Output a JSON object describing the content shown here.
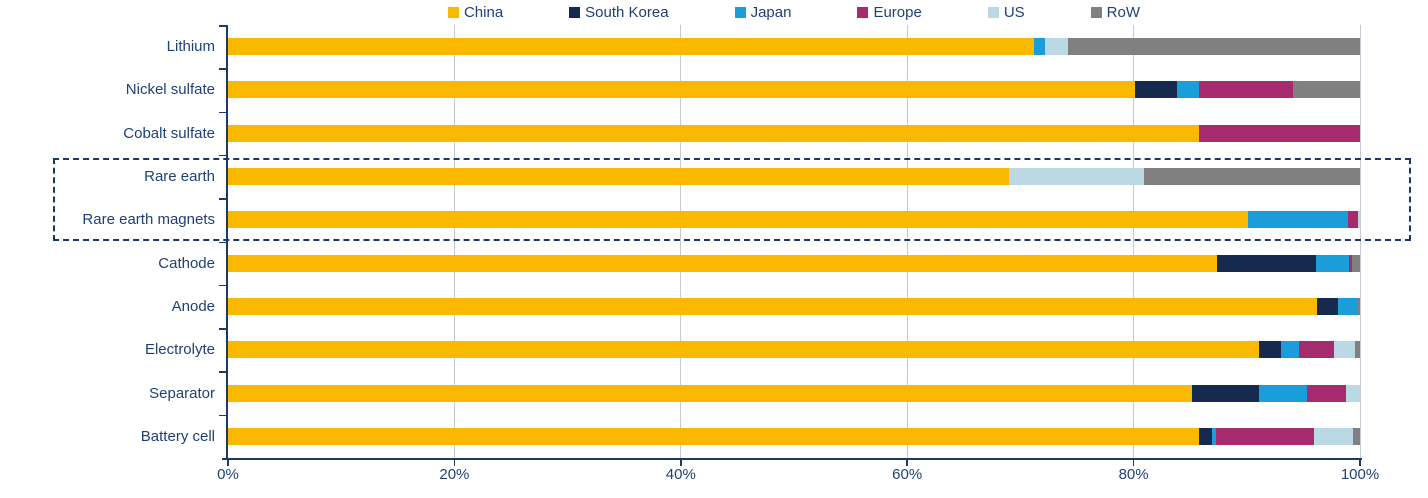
{
  "chart_data": {
    "type": "bar",
    "orientation": "horizontal",
    "stacked": true,
    "unit": "percent",
    "title": "",
    "categories": [
      "Lithium",
      "Nickel sulfate",
      "Cobalt sulfate",
      "Rare earth",
      "Rare earth magnets",
      "Cathode",
      "Anode",
      "Electrolyte",
      "Separator",
      "Battery cell"
    ],
    "series": [
      {
        "name": "China",
        "color": "#FBB800",
        "values": [
          71.2,
          80.1,
          85.8,
          69.0,
          90.1,
          87.4,
          96.2,
          91.1,
          85.2,
          85.8
        ]
      },
      {
        "name": "South Korea",
        "color": "#16294F",
        "values": [
          0,
          3.7,
          0,
          0,
          0,
          8.7,
          1.9,
          1.9,
          5.9,
          1.1
        ]
      },
      {
        "name": "Japan",
        "color": "#1A9DD9",
        "values": [
          1.0,
          2.0,
          0,
          0,
          8.8,
          2.9,
          1.6,
          1.6,
          4.2,
          0.4
        ]
      },
      {
        "name": "Europe",
        "color": "#A62A6E",
        "values": [
          0,
          8.3,
          14.2,
          0,
          0.9,
          0.3,
          0,
          3.1,
          3.5,
          8.6
        ]
      },
      {
        "name": "US",
        "color": "#BBD9E5",
        "values": [
          2.0,
          0,
          0,
          11.9,
          0.2,
          0,
          0,
          1.9,
          1.2,
          3.5
        ]
      },
      {
        "name": "RoW",
        "color": "#808080",
        "values": [
          25.8,
          5.9,
          0,
          19.1,
          0,
          0.7,
          0.3,
          0.4,
          0,
          0.6
        ]
      }
    ],
    "x_axis": {
      "range": [
        0,
        100
      ],
      "tick_labels": [
        "0%",
        "20%",
        "40%",
        "60%",
        "80%",
        "100%"
      ],
      "grid": true
    },
    "legend_position": "top",
    "highlight_box": {
      "categories": [
        "Rare earth",
        "Rare earth magnets"
      ],
      "style": "dashed"
    }
  },
  "colors": {
    "axis": "#1F3864",
    "text": "#1F4077",
    "gridline": "#C4CAD4",
    "highlight_border": "#17376E",
    "background": "#FFFFFF"
  }
}
